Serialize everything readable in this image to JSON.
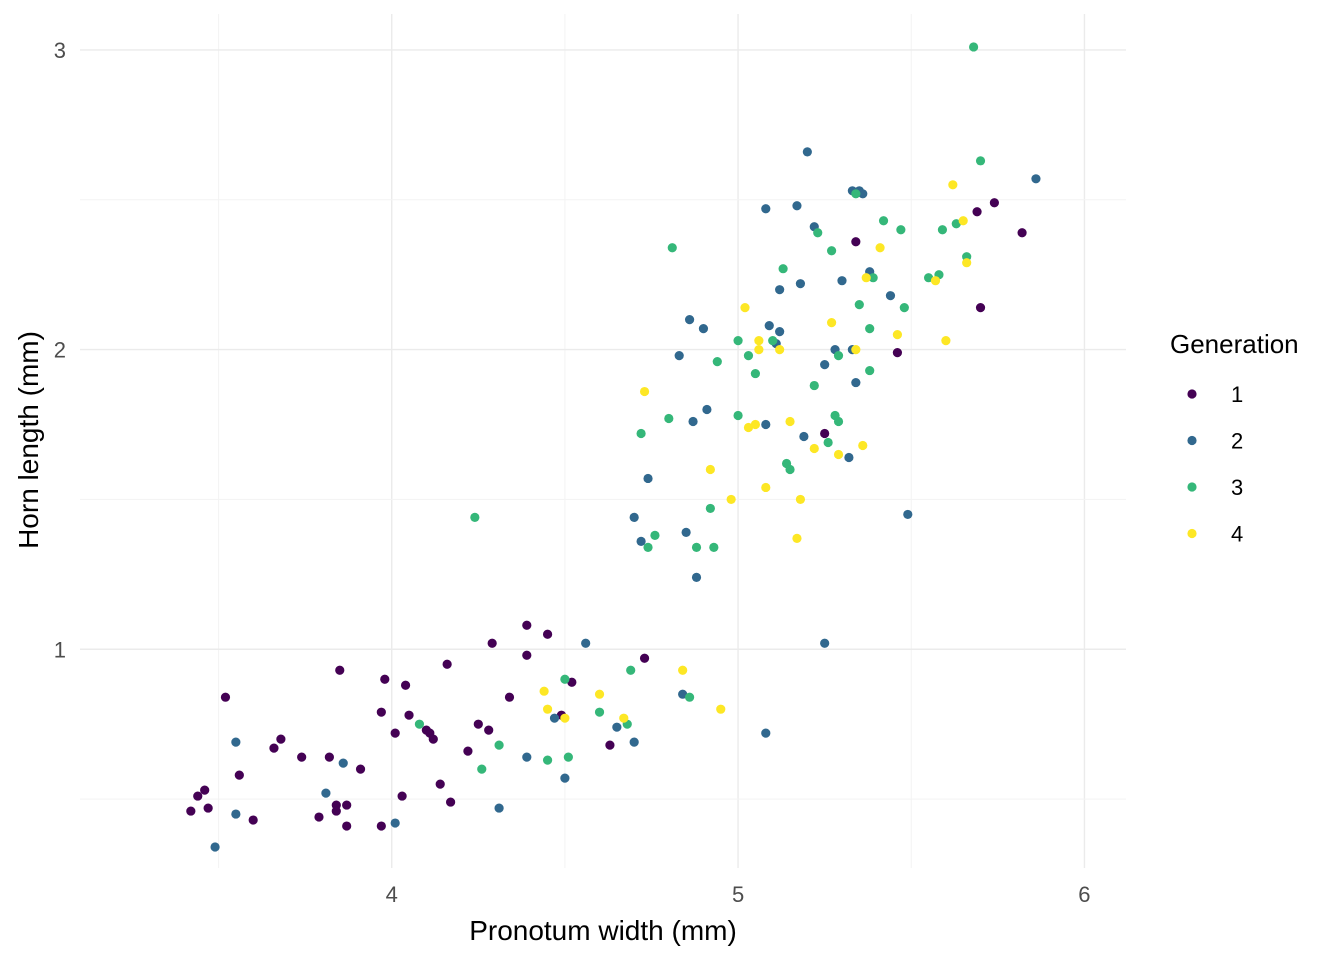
{
  "chart_data": {
    "type": "scatter",
    "xlabel": "Pronotum width (mm)",
    "ylabel": "Horn length (mm)",
    "xlim": [
      3.1,
      6.12
    ],
    "ylim": [
      0.27,
      3.12
    ],
    "xticks": [
      4,
      5,
      6
    ],
    "yticks": [
      1,
      2,
      3
    ],
    "grid": true,
    "legend": {
      "title": "Generation",
      "position": "right"
    },
    "colors": {
      "1": "#440154",
      "2": "#31688E",
      "3": "#35B779",
      "4": "#FDE725"
    },
    "series": [
      {
        "name": "1",
        "points": [
          [
            3.42,
            0.46
          ],
          [
            3.44,
            0.51
          ],
          [
            3.46,
            0.53
          ],
          [
            3.47,
            0.47
          ],
          [
            3.52,
            0.84
          ],
          [
            3.56,
            0.58
          ],
          [
            3.6,
            0.43
          ],
          [
            3.66,
            0.67
          ],
          [
            3.68,
            0.7
          ],
          [
            3.74,
            0.64
          ],
          [
            3.79,
            0.44
          ],
          [
            3.82,
            0.64
          ],
          [
            3.84,
            0.48
          ],
          [
            3.84,
            0.46
          ],
          [
            3.85,
            0.93
          ],
          [
            3.87,
            0.41
          ],
          [
            3.87,
            0.48
          ],
          [
            3.91,
            0.6
          ],
          [
            3.97,
            0.41
          ],
          [
            3.97,
            0.79
          ],
          [
            3.98,
            0.9
          ],
          [
            4.01,
            0.72
          ],
          [
            4.03,
            0.51
          ],
          [
            4.04,
            0.88
          ],
          [
            4.05,
            0.78
          ],
          [
            4.1,
            0.73
          ],
          [
            4.11,
            0.72
          ],
          [
            4.12,
            0.7
          ],
          [
            4.14,
            0.55
          ],
          [
            4.16,
            0.95
          ],
          [
            4.17,
            0.49
          ],
          [
            4.22,
            0.66
          ],
          [
            4.25,
            0.75
          ],
          [
            4.28,
            0.73
          ],
          [
            4.29,
            1.02
          ],
          [
            4.34,
            0.84
          ],
          [
            4.39,
            1.08
          ],
          [
            4.39,
            0.98
          ],
          [
            4.45,
            1.05
          ],
          [
            4.49,
            0.78
          ],
          [
            4.52,
            0.89
          ],
          [
            4.63,
            0.68
          ],
          [
            4.73,
            0.97
          ],
          [
            5.25,
            1.72
          ],
          [
            5.34,
            2.36
          ],
          [
            5.46,
            1.99
          ],
          [
            5.69,
            2.46
          ],
          [
            5.7,
            2.14
          ],
          [
            5.74,
            2.49
          ],
          [
            5.82,
            2.39
          ]
        ]
      },
      {
        "name": "2",
        "points": [
          [
            3.49,
            0.34
          ],
          [
            3.55,
            0.69
          ],
          [
            3.55,
            0.45
          ],
          [
            3.81,
            0.52
          ],
          [
            3.86,
            0.62
          ],
          [
            4.01,
            0.42
          ],
          [
            4.31,
            0.47
          ],
          [
            4.39,
            0.64
          ],
          [
            4.47,
            0.77
          ],
          [
            4.5,
            0.57
          ],
          [
            4.56,
            1.02
          ],
          [
            4.65,
            0.74
          ],
          [
            4.7,
            1.44
          ],
          [
            4.7,
            0.69
          ],
          [
            4.72,
            1.36
          ],
          [
            4.74,
            1.57
          ],
          [
            4.83,
            1.98
          ],
          [
            4.84,
            0.85
          ],
          [
            4.85,
            1.39
          ],
          [
            4.86,
            2.1
          ],
          [
            4.87,
            1.76
          ],
          [
            4.88,
            1.24
          ],
          [
            4.9,
            2.07
          ],
          [
            4.91,
            1.8
          ],
          [
            5.08,
            1.75
          ],
          [
            5.08,
            2.47
          ],
          [
            5.08,
            0.72
          ],
          [
            5.09,
            2.08
          ],
          [
            5.11,
            2.02
          ],
          [
            5.12,
            2.06
          ],
          [
            5.12,
            2.2
          ],
          [
            5.17,
            2.48
          ],
          [
            5.18,
            2.22
          ],
          [
            5.19,
            1.71
          ],
          [
            5.2,
            2.66
          ],
          [
            5.22,
            2.41
          ],
          [
            5.25,
            1.95
          ],
          [
            5.25,
            1.02
          ],
          [
            5.28,
            2.0
          ],
          [
            5.3,
            2.23
          ],
          [
            5.32,
            1.64
          ],
          [
            5.33,
            2.0
          ],
          [
            5.33,
            2.53
          ],
          [
            5.34,
            1.89
          ],
          [
            5.35,
            2.53
          ],
          [
            5.36,
            2.52
          ],
          [
            5.38,
            2.26
          ],
          [
            5.44,
            2.18
          ],
          [
            5.49,
            1.45
          ],
          [
            5.86,
            2.57
          ]
        ]
      },
      {
        "name": "3",
        "points": [
          [
            4.08,
            0.75
          ],
          [
            4.24,
            1.44
          ],
          [
            4.26,
            0.6
          ],
          [
            4.31,
            0.68
          ],
          [
            4.45,
            0.63
          ],
          [
            4.5,
            0.9
          ],
          [
            4.51,
            0.64
          ],
          [
            4.6,
            0.79
          ],
          [
            4.68,
            0.75
          ],
          [
            4.69,
            0.93
          ],
          [
            4.72,
            1.72
          ],
          [
            4.74,
            1.34
          ],
          [
            4.76,
            1.38
          ],
          [
            4.8,
            1.77
          ],
          [
            4.81,
            2.34
          ],
          [
            4.86,
            0.84
          ],
          [
            4.88,
            1.34
          ],
          [
            4.92,
            1.47
          ],
          [
            4.93,
            1.34
          ],
          [
            4.94,
            1.96
          ],
          [
            5.0,
            2.03
          ],
          [
            5.0,
            1.78
          ],
          [
            5.03,
            1.98
          ],
          [
            5.05,
            1.92
          ],
          [
            5.1,
            2.03
          ],
          [
            5.13,
            2.27
          ],
          [
            5.14,
            1.62
          ],
          [
            5.15,
            1.6
          ],
          [
            5.22,
            1.88
          ],
          [
            5.23,
            2.39
          ],
          [
            5.26,
            1.69
          ],
          [
            5.27,
            2.33
          ],
          [
            5.28,
            1.78
          ],
          [
            5.29,
            1.76
          ],
          [
            5.29,
            1.98
          ],
          [
            5.34,
            2.52
          ],
          [
            5.35,
            2.15
          ],
          [
            5.38,
            2.07
          ],
          [
            5.38,
            1.93
          ],
          [
            5.39,
            2.24
          ],
          [
            5.42,
            2.43
          ],
          [
            5.47,
            2.4
          ],
          [
            5.48,
            2.14
          ],
          [
            5.55,
            2.24
          ],
          [
            5.58,
            2.25
          ],
          [
            5.59,
            2.4
          ],
          [
            5.63,
            2.42
          ],
          [
            5.66,
            2.31
          ],
          [
            5.68,
            3.01
          ],
          [
            5.7,
            2.63
          ]
        ]
      },
      {
        "name": "4",
        "points": [
          [
            4.44,
            0.86
          ],
          [
            4.45,
            0.8
          ],
          [
            4.5,
            0.77
          ],
          [
            4.6,
            0.85
          ],
          [
            4.67,
            0.77
          ],
          [
            4.73,
            1.86
          ],
          [
            4.84,
            0.93
          ],
          [
            4.92,
            1.6
          ],
          [
            4.95,
            0.8
          ],
          [
            4.98,
            1.5
          ],
          [
            5.02,
            2.14
          ],
          [
            5.03,
            1.74
          ],
          [
            5.05,
            1.75
          ],
          [
            5.06,
            2.03
          ],
          [
            5.06,
            2.0
          ],
          [
            5.08,
            1.54
          ],
          [
            5.12,
            2.0
          ],
          [
            5.15,
            1.76
          ],
          [
            5.17,
            1.37
          ],
          [
            5.18,
            1.5
          ],
          [
            5.22,
            1.67
          ],
          [
            5.27,
            2.09
          ],
          [
            5.29,
            1.65
          ],
          [
            5.34,
            2.0
          ],
          [
            5.36,
            1.68
          ],
          [
            5.37,
            2.24
          ],
          [
            5.41,
            2.34
          ],
          [
            5.46,
            2.05
          ],
          [
            5.57,
            2.23
          ],
          [
            5.6,
            2.03
          ],
          [
            5.62,
            2.55
          ],
          [
            5.65,
            2.43
          ],
          [
            5.66,
            2.29
          ]
        ]
      }
    ]
  }
}
